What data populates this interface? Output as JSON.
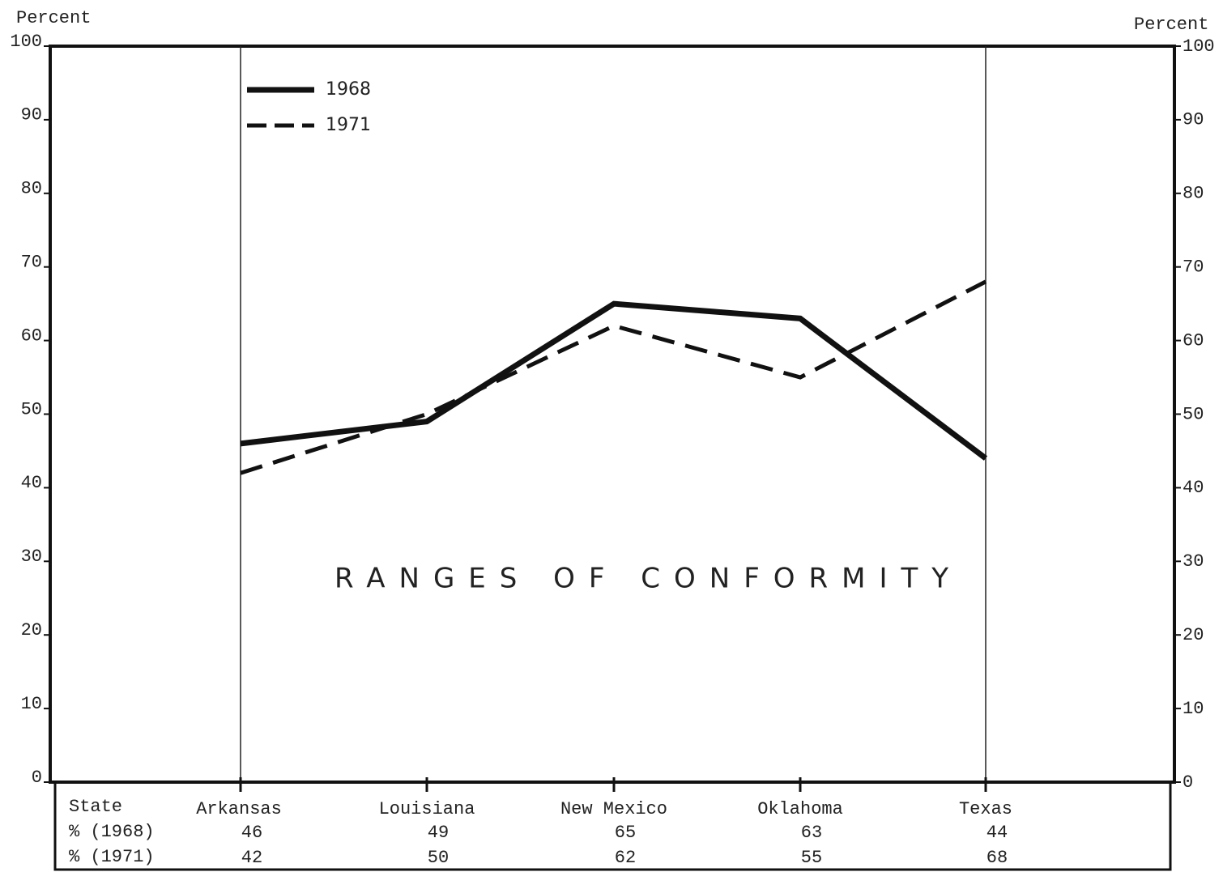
{
  "chart_data": {
    "type": "line",
    "y_label": "Percent",
    "y2_label": "Percent",
    "annotation": "RANGES OF CONFORMITY",
    "categories": [
      "Arkansas",
      "Louisiana",
      "New Mexico",
      "Oklahoma",
      "Texas"
    ],
    "series": [
      {
        "name": "1968",
        "color": "#111111",
        "style": "solid",
        "values": [
          46,
          49,
          65,
          63,
          44
        ]
      },
      {
        "name": "1971",
        "color": "#111111",
        "style": "dashed",
        "values": [
          42,
          50,
          62,
          55,
          68
        ]
      }
    ],
    "ylim": [
      0,
      100
    ],
    "yticks": [
      0,
      10,
      20,
      30,
      40,
      50,
      60,
      70,
      80,
      90,
      100
    ],
    "y2lim": [
      0,
      100
    ],
    "y2ticks": [
      0,
      10,
      20,
      30,
      40,
      50,
      60,
      70,
      80,
      90,
      100
    ],
    "table": {
      "header": "State",
      "row_labels": [
        "% (1968)",
        "% (1971)"
      ]
    }
  }
}
